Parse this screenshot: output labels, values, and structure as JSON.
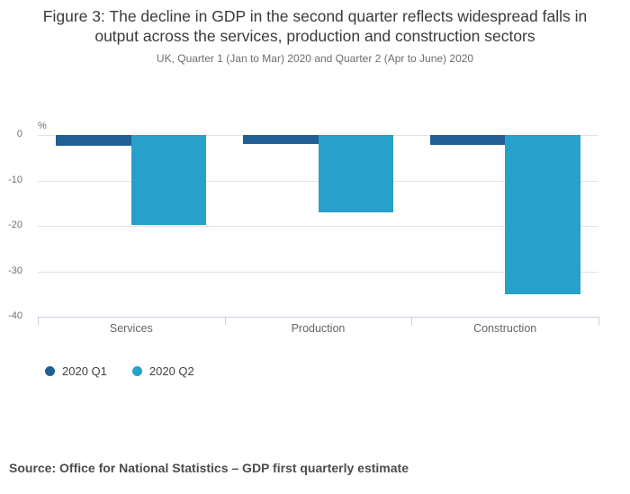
{
  "header": {
    "title": "Figure 3: The decline in GDP in the second quarter reflects widespread falls in output across the services, production and construction sectors",
    "subtitle": "UK, Quarter 1 (Jan to Mar) 2020 and Quarter 2 (Apr to June) 2020"
  },
  "chart_data": {
    "type": "bar",
    "orientation": "vertical",
    "title": "Figure 3: The decline in GDP in the second quarter reflects widespread falls in output across the services, production and construction sectors",
    "subtitle": "UK, Quarter 1 (Jan to Mar) 2020 and Quarter 2 (Apr to June) 2020",
    "unit_label": "%",
    "categories": [
      "Services",
      "Production",
      "Construction"
    ],
    "series": [
      {
        "name": "2020 Q1",
        "color": "#206095",
        "values": [
          -2.4,
          -1.9,
          -2.2
        ]
      },
      {
        "name": "2020 Q2",
        "color": "#27a0cc",
        "values": [
          -19.9,
          -17.0,
          -35.0
        ]
      }
    ],
    "ylabel": "%",
    "xlabel": "",
    "ylim": [
      -40,
      0
    ],
    "yticks": [
      0,
      -10,
      -20,
      -30,
      -40
    ],
    "grid": "horizontal",
    "legend_position": "bottom-left"
  },
  "footer": {
    "source": "Source: Office for National Statistics – GDP first quarterly estimate"
  }
}
